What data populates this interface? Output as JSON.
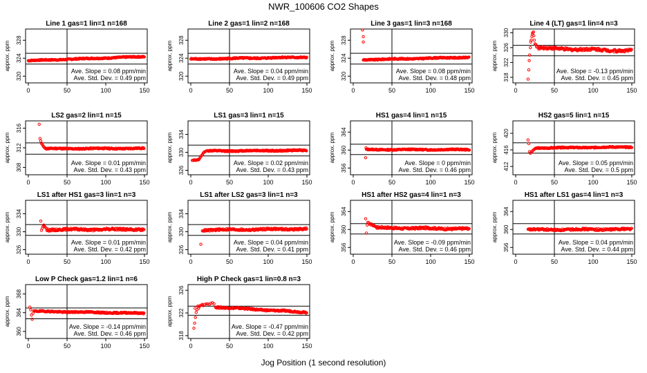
{
  "title": "NWR_100606  CO2 Shapes",
  "xlabel": "Jog Position (1 second resolution)",
  "colors": {
    "points": "#ff0000",
    "axis": "#000000"
  },
  "chart_data": [
    {
      "type": "scatter",
      "title": "Line 1 gas=1 lin=1 n=168",
      "ylabel": "approx. ppm",
      "xlim": [
        0,
        150
      ],
      "xticks": [
        0,
        50,
        100,
        150
      ],
      "ylim": [
        318.5,
        330.5
      ],
      "yticks": [
        320,
        324,
        328
      ],
      "hlines": [
        325.1,
        322.7
      ],
      "vline": 50,
      "slope_label": "Ave. Slope =",
      "slope": "0.08",
      "slope_unit": "ppm/min",
      "std_label": "Ave. Std. Dev. =",
      "std": "0.49",
      "std_unit": "ppm",
      "start": 0,
      "level": 323.9,
      "trend": 0.006,
      "noise": 0.12,
      "spikes": []
    },
    {
      "type": "scatter",
      "title": "Line 2 gas=1 lin=2 n=168",
      "ylabel": "approx. ppm",
      "xlim": [
        0,
        150
      ],
      "xticks": [
        0,
        50,
        100,
        150
      ],
      "ylim": [
        318.5,
        330.5
      ],
      "yticks": [
        320,
        324,
        328
      ],
      "hlines": [
        325.1,
        322.7
      ],
      "vline": 50,
      "slope_label": "Ave. Slope =",
      "slope": "0.04",
      "slope_unit": "ppm/min",
      "std_label": "Ave. Std. Dev. =",
      "std": "0.49",
      "std_unit": "ppm",
      "start": 0,
      "level": 324.0,
      "trend": 0.003,
      "noise": 0.14,
      "spikes": []
    },
    {
      "type": "scatter",
      "title": "Line 3 gas=1 lin=3 n=168",
      "ylabel": "approx. ppm",
      "xlim": [
        0,
        150
      ],
      "xticks": [
        0,
        50,
        100,
        150
      ],
      "ylim": [
        318.5,
        330.5
      ],
      "yticks": [
        320,
        324,
        328
      ],
      "hlines": [
        325.1,
        322.7
      ],
      "vline": 50,
      "slope_label": "Ave. Slope =",
      "slope": "0.08",
      "slope_unit": "ppm/min",
      "std_label": "Ave. Std. Dev. =",
      "std": "0.48",
      "std_unit": "ppm",
      "start": 13,
      "level": 323.9,
      "trend": 0.004,
      "noise": 0.12,
      "spikes": [
        [
          12,
          330.3
        ],
        [
          13,
          328.8
        ],
        [
          13,
          327.6
        ]
      ]
    },
    {
      "type": "scatter",
      "title": "Line 4 (LT) gas=1 lin=4 n=3",
      "ylabel": "approx. ppm",
      "xlim": [
        0,
        150
      ],
      "xticks": [
        0,
        50,
        100,
        150
      ],
      "ylim": [
        316.5,
        331
      ],
      "yticks": [
        318,
        322,
        326,
        330
      ],
      "hlines": [
        326.6,
        323.8
      ],
      "vline": 50,
      "slope_label": "Ave. Slope =",
      "slope": "-0.13",
      "slope_unit": "ppm/min",
      "std_label": "Ave. Std. Dev. =",
      "std": "0.45",
      "std_unit": "ppm",
      "start": 30,
      "level": 325.6,
      "trend": -0.006,
      "noise": 0.35,
      "spikes": [
        [
          16,
          317.5
        ],
        [
          17,
          320
        ],
        [
          17.5,
          322.5
        ],
        [
          18,
          324
        ],
        [
          19,
          326
        ],
        [
          19.5,
          327.5
        ],
        [
          20,
          328
        ],
        [
          21,
          329
        ],
        [
          21.5,
          329.6
        ],
        [
          22,
          330
        ],
        [
          23,
          330.2
        ],
        [
          23.5,
          329.2
        ],
        [
          24,
          328
        ],
        [
          25,
          327
        ],
        [
          26,
          326.8
        ],
        [
          27,
          326.2
        ],
        [
          28,
          326.4
        ],
        [
          29,
          325.9
        ]
      ]
    },
    {
      "type": "scatter",
      "title": "LS2 gas=2 lin=1 n=15",
      "ylabel": "approx. ppm",
      "xlim": [
        0,
        150
      ],
      "xticks": [
        0,
        50,
        100,
        150
      ],
      "ylim": [
        306.5,
        317.5
      ],
      "yticks": [
        308,
        312,
        316
      ],
      "hlines": [
        313.0,
        310.7
      ],
      "vline": 50,
      "slope_label": "Ave. Slope =",
      "slope": "0.01",
      "slope_unit": "ppm/min",
      "std_label": "Ave. Std. Dev. =",
      "std": "0.43",
      "std_unit": "ppm",
      "start": 22,
      "level": 311.85,
      "trend": 0.0005,
      "noise": 0.12,
      "spikes": [
        [
          14,
          316.8
        ],
        [
          15,
          313.9
        ],
        [
          16,
          313.4
        ],
        [
          17,
          312.9
        ],
        [
          18,
          312.7
        ],
        [
          19,
          312.4
        ],
        [
          20,
          312.2
        ],
        [
          21,
          312.0
        ]
      ]
    },
    {
      "type": "scatter",
      "title": "LS1 gas=3 lin=1 n=15",
      "ylabel": "approx. ppm",
      "xlim": [
        0,
        150
      ],
      "xticks": [
        0,
        50,
        100,
        150
      ],
      "ylim": [
        325,
        337
      ],
      "yticks": [
        326,
        330,
        334
      ],
      "hlines": [
        331.6,
        329.2
      ],
      "vline": 50,
      "slope_label": "Ave. Slope =",
      "slope": "0.02",
      "slope_unit": "ppm/min",
      "std_label": "Ave. Std. Dev. =",
      "std": "0.43",
      "std_unit": "ppm",
      "start": 22,
      "level": 330.35,
      "trend": 0.001,
      "noise": 0.13,
      "spikes": [
        [
          2,
          328.2
        ],
        [
          3,
          328.2
        ],
        [
          4,
          328.3
        ],
        [
          5,
          328.2
        ],
        [
          6,
          328.3
        ],
        [
          7,
          328.2
        ],
        [
          8,
          328.3
        ],
        [
          9,
          328.4
        ],
        [
          10,
          328.3
        ],
        [
          11,
          328.5
        ],
        [
          12,
          328.8
        ],
        [
          13,
          329.0
        ],
        [
          14,
          329.3
        ],
        [
          15,
          329.5
        ],
        [
          16,
          329.8
        ],
        [
          17,
          330.0
        ],
        [
          18,
          330.1
        ],
        [
          19,
          330.2
        ],
        [
          20,
          330.3
        ]
      ]
    },
    {
      "type": "scatter",
      "title": "HS1 gas=4 lin=1 n=15",
      "ylabel": "approx. ppm",
      "xlim": [
        0,
        150
      ],
      "xticks": [
        0,
        50,
        100,
        150
      ],
      "ylim": [
        354.5,
        366.5
      ],
      "yticks": [
        356,
        360,
        364
      ],
      "hlines": [
        361.3,
        359.0
      ],
      "vline": 50,
      "slope_label": "Ave. Slope =",
      "slope": "0",
      "slope_unit": "ppm/min",
      "std_label": "Ave. Std. Dev. =",
      "std": "0.46",
      "std_unit": "ppm",
      "start": 17,
      "level": 360.1,
      "trend": 0,
      "noise": 0.12,
      "spikes": [
        [
          16,
          358.3
        ],
        [
          16.5,
          360.5
        ]
      ]
    },
    {
      "type": "scatter",
      "title": "HS2 gas=5 lin=1 n=15",
      "ylabel": "approx. ppm",
      "xlim": [
        0,
        150
      ],
      "xticks": [
        0,
        50,
        100,
        150
      ],
      "ylim": [
        410,
        423
      ],
      "yticks": [
        412,
        416,
        420
      ],
      "hlines": [
        417.7,
        415.2
      ],
      "vline": 50,
      "slope_label": "Ave. Slope =",
      "slope": "0.05",
      "slope_unit": "ppm/min",
      "std_label": "Ave. Std. Dev. =",
      "std": "0.5",
      "std_unit": "ppm",
      "start": 26,
      "level": 416.55,
      "trend": 0.002,
      "noise": 0.13,
      "spikes": [
        [
          16,
          418.4
        ],
        [
          17,
          417.5
        ],
        [
          18,
          415.6
        ],
        [
          19,
          415.2
        ],
        [
          20,
          415.4
        ],
        [
          21,
          415.6
        ],
        [
          22,
          415.8
        ],
        [
          23,
          416.0
        ],
        [
          24,
          416.1
        ],
        [
          25,
          416.3
        ]
      ]
    },
    {
      "type": "scatter",
      "title": "LS1 after HS1 gas=3 lin=1 n=3",
      "ylabel": "approx. ppm",
      "xlim": [
        0,
        150
      ],
      "xticks": [
        0,
        50,
        100,
        150
      ],
      "ylim": [
        325,
        337
      ],
      "yticks": [
        326,
        330,
        334
      ],
      "hlines": [
        331.6,
        329.2
      ],
      "vline": 50,
      "slope_label": "Ave. Slope =",
      "slope": "0.01",
      "slope_unit": "ppm/min",
      "std_label": "Ave. Std. Dev. =",
      "std": "0.42",
      "std_unit": "ppm",
      "start": 24,
      "level": 330.5,
      "trend": 0.0005,
      "noise": 0.22,
      "spikes": [
        [
          16,
          332.4
        ],
        [
          17,
          330.3
        ],
        [
          18,
          330.8
        ],
        [
          19,
          331.2
        ],
        [
          20,
          331.5
        ],
        [
          21,
          331.2
        ],
        [
          22,
          331.0
        ],
        [
          23,
          330.8
        ]
      ]
    },
    {
      "type": "scatter",
      "title": "LS1 after LS2 gas=3 lin=1 n=3",
      "ylabel": "approx. ppm",
      "xlim": [
        0,
        150
      ],
      "xticks": [
        0,
        50,
        100,
        150
      ],
      "ylim": [
        325,
        337
      ],
      "yticks": [
        326,
        330,
        334
      ],
      "hlines": [
        331.6,
        329.2
      ],
      "vline": 50,
      "slope_label": "Ave. Slope =",
      "slope": "0.04",
      "slope_unit": "ppm/min",
      "std_label": "Ave. Std. Dev. =",
      "std": "0.41",
      "std_unit": "ppm",
      "start": 16,
      "level": 330.5,
      "trend": 0.002,
      "noise": 0.2,
      "spikes": [
        [
          13,
          327.2
        ],
        [
          15,
          330.2
        ]
      ]
    },
    {
      "type": "scatter",
      "title": "HS1 after HS2 gas=4 lin=1 n=3",
      "ylabel": "approx. ppm",
      "xlim": [
        0,
        150
      ],
      "xticks": [
        0,
        50,
        100,
        150
      ],
      "ylim": [
        354.5,
        366.5
      ],
      "yticks": [
        356,
        360,
        364
      ],
      "hlines": [
        361.3,
        359.0
      ],
      "vline": 50,
      "slope_label": "Ave. Slope =",
      "slope": "-0.09",
      "slope_unit": "ppm/min",
      "std_label": "Ave. Std. Dev. =",
      "std": "0.46",
      "std_unit": "ppm",
      "start": 30,
      "level": 360.3,
      "trend": -0.002,
      "noise": 0.22,
      "spikes": [
        [
          16,
          362.4
        ],
        [
          17,
          359.2
        ],
        [
          18,
          361.0
        ],
        [
          19,
          361.6
        ],
        [
          20,
          361.5
        ],
        [
          21,
          361.2
        ],
        [
          22,
          361.3
        ],
        [
          23,
          361.0
        ],
        [
          24,
          361.2
        ],
        [
          25,
          361.0
        ],
        [
          26,
          360.8
        ],
        [
          27,
          360.9
        ],
        [
          28,
          360.7
        ],
        [
          29,
          360.6
        ]
      ]
    },
    {
      "type": "scatter",
      "title": "HS1 after LS1 gas=4 lin=1 n=3",
      "ylabel": "approx. ppm",
      "xlim": [
        0,
        150
      ],
      "xticks": [
        0,
        50,
        100,
        150
      ],
      "ylim": [
        354.5,
        366.5
      ],
      "yticks": [
        356,
        360,
        364
      ],
      "hlines": [
        361.3,
        359.0
      ],
      "vline": 50,
      "slope_label": "Ave. Slope =",
      "slope": "0.04",
      "slope_unit": "ppm/min",
      "std_label": "Ave. Std. Dev. =",
      "std": "0.44",
      "std_unit": "ppm",
      "start": 16,
      "level": 360.0,
      "trend": 0.001,
      "noise": 0.2,
      "spikes": []
    },
    {
      "type": "scatter",
      "title": "Low P Check gas=1.2 lin=1 n=6",
      "ylabel": "approx. ppm",
      "xlim": [
        0,
        150
      ],
      "xticks": [
        0,
        50,
        100,
        150
      ],
      "ylim": [
        358.5,
        370
      ],
      "yticks": [
        360,
        364,
        368
      ],
      "hlines": [
        365.0,
        362.7
      ],
      "vline": 50,
      "slope_label": "Ave. Slope =",
      "slope": "-0.14",
      "slope_unit": "ppm/min",
      "std_label": "Ave. Std. Dev. =",
      "std": "0.46",
      "std_unit": "ppm",
      "start": 8,
      "level": 364.1,
      "trend": -0.003,
      "noise": 0.13,
      "spikes": [
        [
          2,
          365.2
        ],
        [
          3,
          364.6
        ],
        [
          4,
          363.5
        ],
        [
          5,
          362.6
        ],
        [
          6,
          363.9
        ],
        [
          7,
          364.4
        ]
      ]
    },
    {
      "type": "scatter",
      "title": "High P Check gas=1 lin=0.8 n=3",
      "ylabel": "approx. ppm",
      "xlim": [
        0,
        150
      ],
      "xticks": [
        0,
        50,
        100,
        150
      ],
      "ylim": [
        317.5,
        327
      ],
      "yticks": [
        318,
        322,
        326
      ],
      "hlines": [
        323.2,
        321.6
      ],
      "vline": 50,
      "slope_label": "Ave. Slope =",
      "slope": "-0.47",
      "slope_unit": "ppm/min",
      "std_label": "Ave. Std. Dev. =",
      "std": "0.42",
      "std_unit": "ppm",
      "start": 32,
      "level": 322.7,
      "trend": -0.008,
      "noise": 0.13,
      "spikes": [
        [
          4,
          319.3
        ],
        [
          5,
          320.2
        ],
        [
          5.5,
          322.8
        ],
        [
          6,
          321.2
        ],
        [
          7,
          322.1
        ],
        [
          8,
          322.6
        ],
        [
          9,
          323.2
        ],
        [
          10,
          322.8
        ],
        [
          11,
          323.1
        ],
        [
          12,
          323.3
        ],
        [
          14,
          323.4
        ],
        [
          15,
          323.5
        ],
        [
          16,
          323.3
        ],
        [
          18,
          323.5
        ],
        [
          20,
          323.6
        ],
        [
          22,
          323.6
        ],
        [
          24,
          323.5
        ],
        [
          26,
          323.7
        ],
        [
          28,
          323.8
        ],
        [
          30,
          323.6
        ]
      ]
    }
  ]
}
